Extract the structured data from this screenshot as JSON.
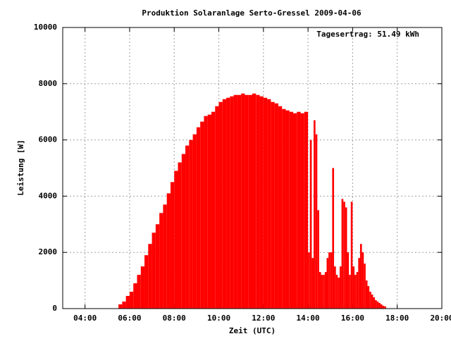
{
  "chart_data": {
    "type": "impulse",
    "title": "Produktion Solaranlage Serto-Gressel 2009-04-06",
    "annotation": "Tagesertrag: 51.49 kWh",
    "x_label": "Zeit (UTC)",
    "y_label": "Leistung [W]",
    "color": "#ff0000",
    "grid": true,
    "xlim": [
      180,
      1200
    ],
    "xticks": [
      {
        "value": 240,
        "label": "04:00"
      },
      {
        "value": 360,
        "label": "06:00"
      },
      {
        "value": 480,
        "label": "08:00"
      },
      {
        "value": 600,
        "label": "10:00"
      },
      {
        "value": 720,
        "label": "12:00"
      },
      {
        "value": 840,
        "label": "14:00"
      },
      {
        "value": 960,
        "label": "16:00"
      },
      {
        "value": 1080,
        "label": "18:00"
      },
      {
        "value": 1200,
        "label": "20:00"
      }
    ],
    "ylim": [
      0,
      10000
    ],
    "yticks": [
      0,
      2000,
      4000,
      6000,
      8000,
      10000
    ],
    "x": [
      330,
      340,
      350,
      360,
      370,
      380,
      390,
      400,
      410,
      420,
      430,
      440,
      450,
      460,
      470,
      480,
      490,
      500,
      510,
      520,
      530,
      540,
      550,
      560,
      570,
      580,
      590,
      600,
      610,
      620,
      630,
      640,
      650,
      660,
      670,
      680,
      690,
      700,
      710,
      720,
      730,
      740,
      750,
      760,
      770,
      780,
      790,
      800,
      810,
      820,
      830,
      835,
      840,
      845,
      850,
      855,
      860,
      865,
      870,
      875,
      880,
      885,
      890,
      895,
      900,
      905,
      910,
      915,
      920,
      925,
      930,
      935,
      940,
      945,
      950,
      955,
      960,
      965,
      970,
      975,
      980,
      985,
      990,
      995,
      1000,
      1005,
      1010,
      1015,
      1020,
      1025,
      1030,
      1035,
      1040,
      1045
    ],
    "values": [
      150,
      250,
      450,
      600,
      900,
      1200,
      1500,
      1900,
      2300,
      2700,
      3000,
      3400,
      3700,
      4100,
      4500,
      4900,
      5200,
      5500,
      5800,
      6000,
      6200,
      6450,
      6650,
      6850,
      6900,
      7000,
      7200,
      7350,
      7450,
      7500,
      7550,
      7600,
      7600,
      7650,
      7600,
      7600,
      7650,
      7600,
      7550,
      7500,
      7450,
      7350,
      7300,
      7200,
      7100,
      7050,
      7000,
      6950,
      7000,
      6950,
      7000,
      7000,
      2000,
      6000,
      1800,
      6700,
      6200,
      3500,
      1300,
      1200,
      1200,
      1300,
      1800,
      2000,
      2000,
      5000,
      1500,
      1200,
      1100,
      1500,
      3900,
      3800,
      3600,
      2000,
      1200,
      3800,
      1500,
      1200,
      1300,
      1800,
      2300,
      2000,
      1600,
      1000,
      800,
      600,
      500,
      400,
      300,
      250,
      200,
      150,
      100,
      80
    ]
  }
}
